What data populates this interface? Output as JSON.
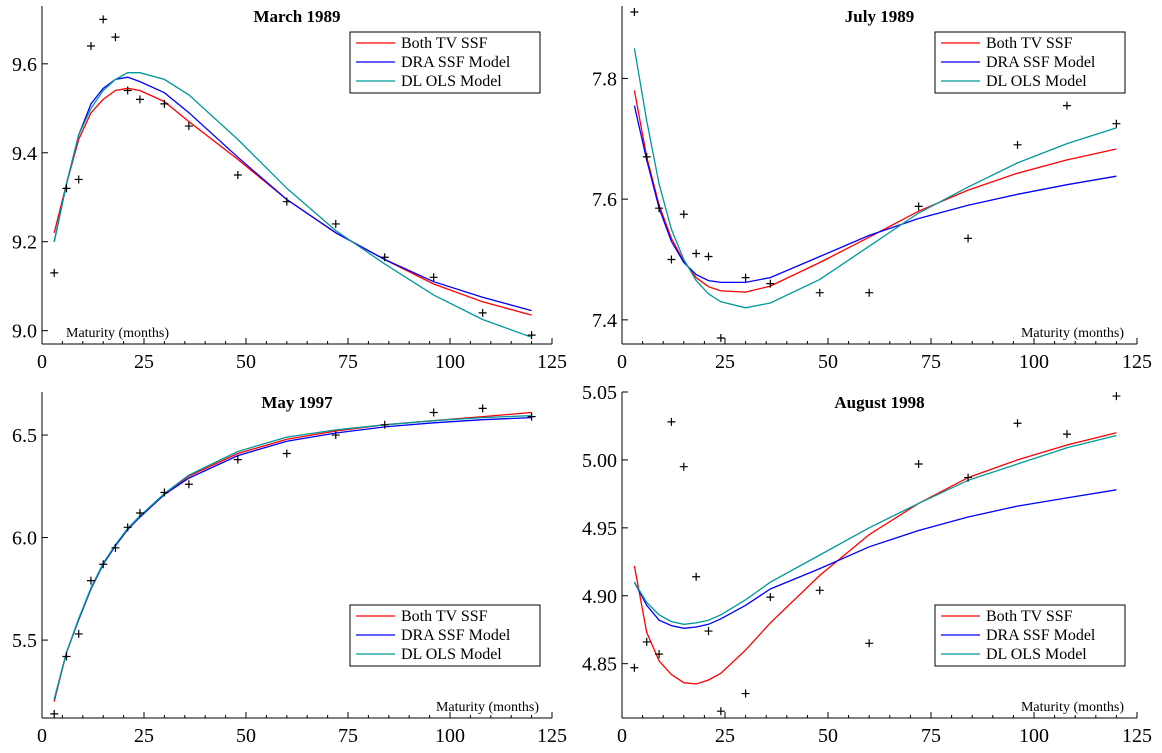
{
  "colors": {
    "both_tv": "#ff0000",
    "dra": "#0000ff",
    "dl": "#009999",
    "markers": "#000000"
  },
  "legend_labels": [
    "Both TV SSF",
    "DRA SSF Model",
    "DL OLS Model"
  ],
  "chart_data": [
    {
      "type": "line",
      "title": "March 1989",
      "xlabel": "Maturity (months)",
      "xlim": [
        0,
        125
      ],
      "ylim": [
        8.97,
        9.73
      ],
      "xticks": [
        0,
        25,
        50,
        75,
        100,
        125
      ],
      "yticks": [
        9.0,
        9.2,
        9.4,
        9.6
      ],
      "ytick_labels": [
        "9.0",
        "9.2",
        "9.4",
        "9.6"
      ],
      "legend_position": "top-right",
      "x": [
        3,
        6,
        9,
        12,
        15,
        18,
        21,
        24,
        30,
        36,
        48,
        60,
        72,
        84,
        96,
        108,
        120
      ],
      "series": [
        {
          "name": "Both TV SSF",
          "values": [
            9.22,
            9.33,
            9.43,
            9.49,
            9.52,
            9.54,
            9.545,
            9.54,
            9.515,
            9.47,
            9.385,
            9.295,
            9.22,
            9.16,
            9.105,
            9.065,
            9.035
          ]
        },
        {
          "name": "DRA SSF Model",
          "values": [
            9.2,
            9.33,
            9.44,
            9.51,
            9.545,
            9.565,
            9.57,
            9.56,
            9.535,
            9.49,
            9.39,
            9.295,
            9.22,
            9.16,
            9.11,
            9.075,
            9.045
          ]
        },
        {
          "name": "DL OLS Model",
          "values": [
            9.2,
            9.33,
            9.44,
            9.5,
            9.54,
            9.565,
            9.58,
            9.58,
            9.565,
            9.53,
            9.43,
            9.32,
            9.225,
            9.15,
            9.08,
            9.025,
            8.985
          ]
        }
      ],
      "observed": {
        "x": [
          3,
          6,
          9,
          12,
          15,
          18,
          21,
          24,
          30,
          36,
          48,
          60,
          72,
          84,
          96,
          108,
          120
        ],
        "values": [
          9.13,
          9.32,
          9.34,
          9.64,
          9.7,
          9.66,
          9.54,
          9.52,
          9.51,
          9.46,
          9.35,
          9.29,
          9.24,
          9.165,
          9.12,
          9.04,
          8.99
        ]
      }
    },
    {
      "type": "line",
      "title": "July 1989",
      "xlabel": "Maturity (months)",
      "xlim": [
        0,
        125
      ],
      "ylim": [
        7.36,
        7.92
      ],
      "xticks": [
        0,
        25,
        50,
        75,
        100,
        125
      ],
      "yticks": [
        7.4,
        7.6,
        7.8
      ],
      "ytick_labels": [
        "7.4",
        "7.6",
        "7.8"
      ],
      "legend_position": "top-right",
      "x": [
        3,
        6,
        9,
        12,
        15,
        18,
        21,
        24,
        30,
        36,
        48,
        60,
        72,
        84,
        96,
        108,
        120
      ],
      "series": [
        {
          "name": "Both TV SSF",
          "values": [
            7.78,
            7.67,
            7.59,
            7.535,
            7.497,
            7.47,
            7.455,
            7.448,
            7.446,
            7.456,
            7.495,
            7.537,
            7.58,
            7.615,
            7.643,
            7.665,
            7.683
          ]
        },
        {
          "name": "DRA SSF Model",
          "values": [
            7.755,
            7.665,
            7.585,
            7.53,
            7.495,
            7.475,
            7.465,
            7.462,
            7.462,
            7.47,
            7.505,
            7.54,
            7.568,
            7.59,
            7.608,
            7.624,
            7.638
          ]
        },
        {
          "name": "DL OLS Model",
          "values": [
            7.85,
            7.73,
            7.625,
            7.55,
            7.5,
            7.465,
            7.443,
            7.43,
            7.42,
            7.428,
            7.467,
            7.522,
            7.577,
            7.62,
            7.66,
            7.692,
            7.718
          ]
        }
      ],
      "observed": {
        "x": [
          3,
          6,
          9,
          12,
          15,
          18,
          21,
          24,
          30,
          36,
          48,
          60,
          72,
          84,
          96,
          108,
          120
        ],
        "values": [
          7.91,
          7.67,
          7.585,
          7.5,
          7.575,
          7.51,
          7.505,
          7.37,
          7.47,
          7.46,
          7.445,
          7.445,
          7.588,
          7.535,
          7.69,
          7.755,
          7.725
        ]
      }
    },
    {
      "type": "line",
      "title": "May 1997",
      "xlabel": "Maturity (months)",
      "xlim": [
        0,
        125
      ],
      "ylim": [
        5.12,
        6.71
      ],
      "xticks": [
        0,
        25,
        50,
        75,
        100,
        125
      ],
      "yticks": [
        5.5,
        6.0,
        6.5
      ],
      "ytick_labels": [
        "5.5",
        "6.0",
        "6.5"
      ],
      "legend_position": "bottom-right",
      "x": [
        3,
        6,
        9,
        12,
        15,
        18,
        21,
        24,
        30,
        36,
        48,
        60,
        72,
        84,
        96,
        108,
        120
      ],
      "series": [
        {
          "name": "Both TV SSF",
          "values": [
            5.2,
            5.44,
            5.6,
            5.75,
            5.87,
            5.96,
            6.04,
            6.1,
            6.21,
            6.3,
            6.41,
            6.48,
            6.52,
            6.55,
            6.57,
            6.59,
            6.61
          ]
        },
        {
          "name": "DRA SSF Model",
          "values": [
            5.21,
            5.44,
            5.6,
            5.75,
            5.87,
            5.96,
            6.04,
            6.1,
            6.21,
            6.29,
            6.4,
            6.47,
            6.51,
            6.54,
            6.56,
            6.575,
            6.585
          ]
        },
        {
          "name": "DL OLS Model",
          "values": [
            5.21,
            5.44,
            5.605,
            5.755,
            5.875,
            5.965,
            6.045,
            6.105,
            6.215,
            6.305,
            6.42,
            6.49,
            6.525,
            6.55,
            6.57,
            6.585,
            6.595
          ]
        }
      ],
      "observed": {
        "x": [
          3,
          6,
          9,
          12,
          15,
          18,
          21,
          24,
          30,
          36,
          48,
          60,
          72,
          84,
          96,
          108,
          120
        ],
        "values": [
          5.14,
          5.42,
          5.53,
          5.79,
          5.87,
          5.95,
          6.05,
          6.12,
          6.22,
          6.26,
          6.38,
          6.41,
          6.5,
          6.55,
          6.61,
          6.63,
          6.59
        ]
      }
    },
    {
      "type": "line",
      "title": "August 1998",
      "xlabel": "Maturity (months)",
      "xlim": [
        0,
        125
      ],
      "ylim": [
        4.81,
        5.05
      ],
      "xticks": [
        0,
        25,
        50,
        75,
        100,
        125
      ],
      "yticks": [
        4.85,
        4.9,
        4.95,
        5.0,
        5.05
      ],
      "ytick_labels": [
        "4.85",
        "4.90",
        "4.95",
        "5.00",
        "5.05"
      ],
      "legend_position": "bottom-right",
      "x": [
        3,
        6,
        9,
        12,
        15,
        18,
        21,
        24,
        30,
        36,
        48,
        60,
        72,
        84,
        96,
        108,
        120
      ],
      "series": [
        {
          "name": "Both TV SSF",
          "values": [
            4.922,
            4.873,
            4.852,
            4.842,
            4.836,
            4.835,
            4.838,
            4.843,
            4.86,
            4.88,
            4.915,
            4.945,
            4.968,
            4.987,
            5.0,
            5.011,
            5.02
          ]
        },
        {
          "name": "DRA SSF Model",
          "values": [
            4.91,
            4.893,
            4.882,
            4.878,
            4.876,
            4.877,
            4.879,
            4.883,
            4.893,
            4.905,
            4.92,
            4.936,
            4.948,
            4.958,
            4.966,
            4.972,
            4.978
          ]
        },
        {
          "name": "DL OLS Model",
          "values": [
            4.91,
            4.895,
            4.886,
            4.881,
            4.879,
            4.88,
            4.882,
            4.886,
            4.897,
            4.91,
            4.93,
            4.95,
            4.968,
            4.985,
            4.997,
            5.009,
            5.018
          ]
        }
      ],
      "observed": {
        "x": [
          3,
          6,
          9,
          12,
          15,
          18,
          21,
          24,
          30,
          36,
          48,
          60,
          72,
          84,
          96,
          108,
          120
        ],
        "values": [
          4.847,
          4.866,
          4.857,
          5.028,
          4.995,
          4.914,
          4.874,
          4.815,
          4.828,
          4.899,
          4.904,
          4.865,
          4.997,
          4.987,
          5.027,
          5.019,
          5.047
        ]
      }
    }
  ]
}
